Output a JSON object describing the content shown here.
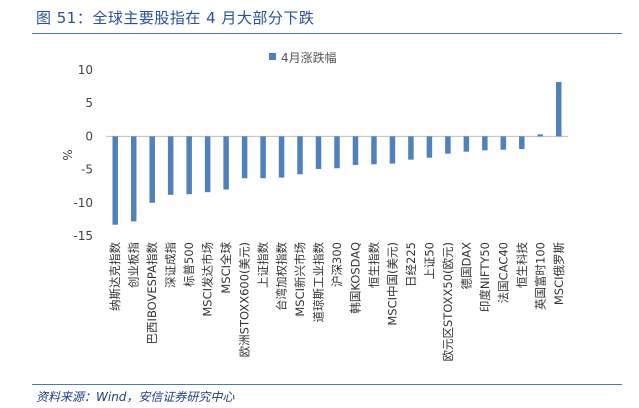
{
  "figure": {
    "title": "图 51：全球主要股指在 4 月大部分下跌",
    "source": "资料来源：Wind，安信证券研究中心"
  },
  "chart_data": {
    "type": "bar",
    "ylabel": "%",
    "ylim": [
      -15,
      10
    ],
    "yticks": [
      10,
      5,
      0,
      -5,
      -10,
      -15
    ],
    "grid": false,
    "legend_position": "top-right",
    "bar_color": "#4f81bd",
    "categories": [
      "纳斯达克指数",
      "创业板指",
      "巴西IBOVESPA指数",
      "深证成指",
      "标普500",
      "MSCI发达市场",
      "MSCI全球",
      "欧洲STOXX600(美元)",
      "上证指数",
      "台湾加权指数",
      "MSCI新兴市场",
      "道琼斯工业指数",
      "沪深300",
      "韩国KOSDAQ",
      "恒生指数",
      "MSCI中国(美元)",
      "日经225",
      "上证50",
      "欧元区STOXX50(欧元)",
      "德国DAX",
      "印度NIFTY50",
      "法国CAC40",
      "恒生科技",
      "英国富时100",
      "MSCI俄罗斯"
    ],
    "series": [
      {
        "name": "4月涨跌幅",
        "values": [
          -13.3,
          -12.8,
          -10.0,
          -8.8,
          -8.7,
          -8.4,
          -8.0,
          -6.3,
          -6.3,
          -6.2,
          -5.7,
          -4.9,
          -4.8,
          -4.3,
          -4.2,
          -4.1,
          -3.5,
          -3.2,
          -2.6,
          -2.3,
          -2.1,
          -2.0,
          -1.9,
          0.3,
          8.2
        ]
      }
    ]
  }
}
